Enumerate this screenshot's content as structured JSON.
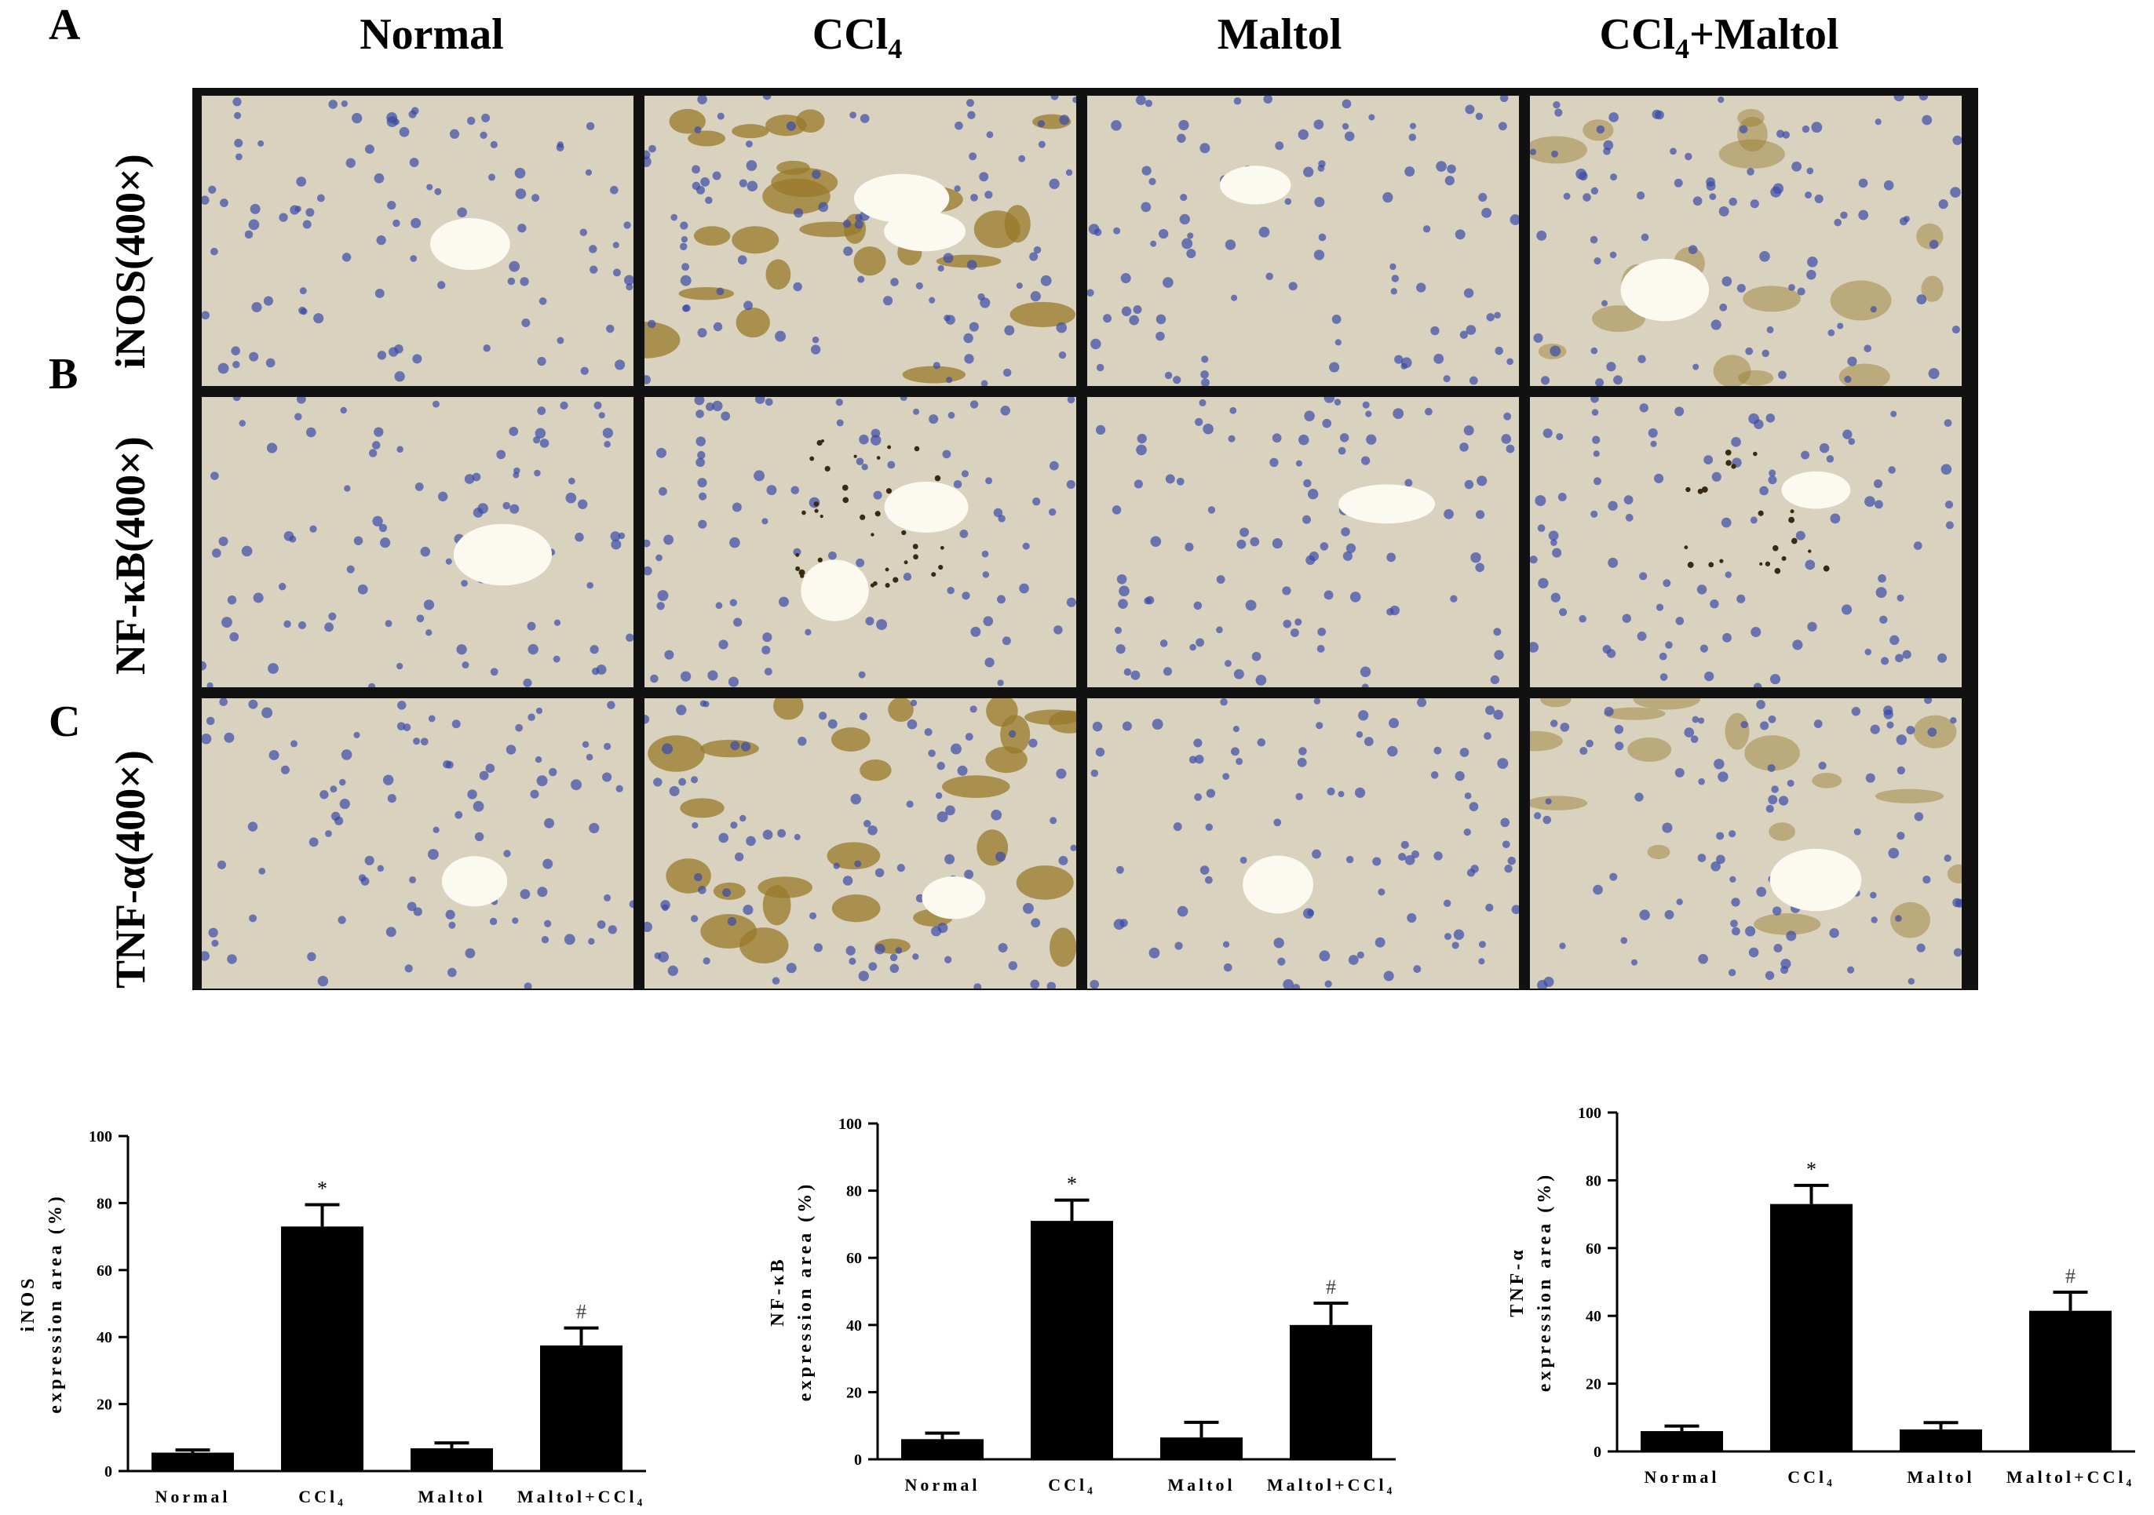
{
  "figure": {
    "panel_letters": [
      "A",
      "B",
      "C"
    ],
    "columns": [
      {
        "label": "Normal",
        "sub": "",
        "suffix": ""
      },
      {
        "label": "CCl",
        "sub": "4",
        "suffix": ""
      },
      {
        "label": "Maltol",
        "sub": "",
        "suffix": ""
      },
      {
        "label": "CCl",
        "sub": "4",
        "suffix": "+Maltol"
      }
    ],
    "rows": [
      "iNOS(400×)",
      "NF-κB(400×)",
      "TNF-α(400×)"
    ],
    "tile_style": [
      {
        "stain": "none",
        "veins": 1
      },
      {
        "stain": "heavy",
        "veins": 2
      },
      {
        "stain": "none",
        "veins": 1
      },
      {
        "stain": "medium",
        "veins": 1
      },
      {
        "stain": "none",
        "veins": 1
      },
      {
        "stain": "dots",
        "veins": 2
      },
      {
        "stain": "none",
        "veins": 1
      },
      {
        "stain": "dots-light",
        "veins": 1
      },
      {
        "stain": "none",
        "veins": 1
      },
      {
        "stain": "heavy",
        "veins": 1
      },
      {
        "stain": "none",
        "veins": 1
      },
      {
        "stain": "medium",
        "veins": 1
      }
    ],
    "colors": {
      "tissue": "#d8d2bf",
      "nuclei": "#3b4aa8",
      "brown_stain": "#9a7a2a",
      "frame": "#111111",
      "bar": "#000000"
    }
  },
  "chart_data": [
    {
      "type": "bar",
      "categories": [
        "Normal",
        "CCl₄",
        "Maltol",
        "Maltol+CCl₄"
      ],
      "values": [
        5.5,
        73,
        6.8,
        37.5
      ],
      "errors": [
        0.8,
        6.5,
        1.6,
        5.2
      ],
      "annotations": [
        "",
        "*",
        "",
        "#"
      ],
      "ylabel_line1": "iNOS",
      "ylabel_line2": "expression area (%)",
      "ylim": [
        0,
        100
      ],
      "yticks": [
        0,
        20,
        40,
        60,
        80,
        100
      ],
      "yticklabels": [
        "0",
        "20",
        "40",
        "60",
        "80",
        "100"
      ]
    },
    {
      "type": "bar",
      "categories": [
        "Normal",
        "CCl₄",
        "Maltol",
        "Maltol+CCl₄"
      ],
      "values": [
        6,
        71,
        6.5,
        40
      ],
      "errors": [
        1.8,
        6.2,
        4.5,
        6.5
      ],
      "annotations": [
        "",
        "*",
        "",
        "#"
      ],
      "ylabel_line1": "NF-κB",
      "ylabel_line2": "expression area (%)",
      "ylim": [
        0,
        100
      ],
      "yticks": [
        0,
        20,
        40,
        60,
        80,
        100
      ],
      "yticklabels": [
        "0",
        "20",
        "40",
        "60",
        "80",
        "100"
      ]
    },
    {
      "type": "bar",
      "categories": [
        "Normal",
        "CCl₄",
        "Maltol",
        "Maltol+CCl₄"
      ],
      "values": [
        6,
        73,
        6.5,
        41.5
      ],
      "errors": [
        1.5,
        5.5,
        2,
        5.5
      ],
      "annotations": [
        "",
        "*",
        "",
        "#"
      ],
      "ylabel_line1": "TNF-α",
      "ylabel_line2": "expression area (%)",
      "ylim": [
        0,
        100
      ],
      "yticks": [
        0,
        20,
        40,
        60,
        80,
        100
      ],
      "yticklabels": [
        "0",
        "20",
        "40",
        "60",
        "80",
        "100"
      ]
    }
  ]
}
